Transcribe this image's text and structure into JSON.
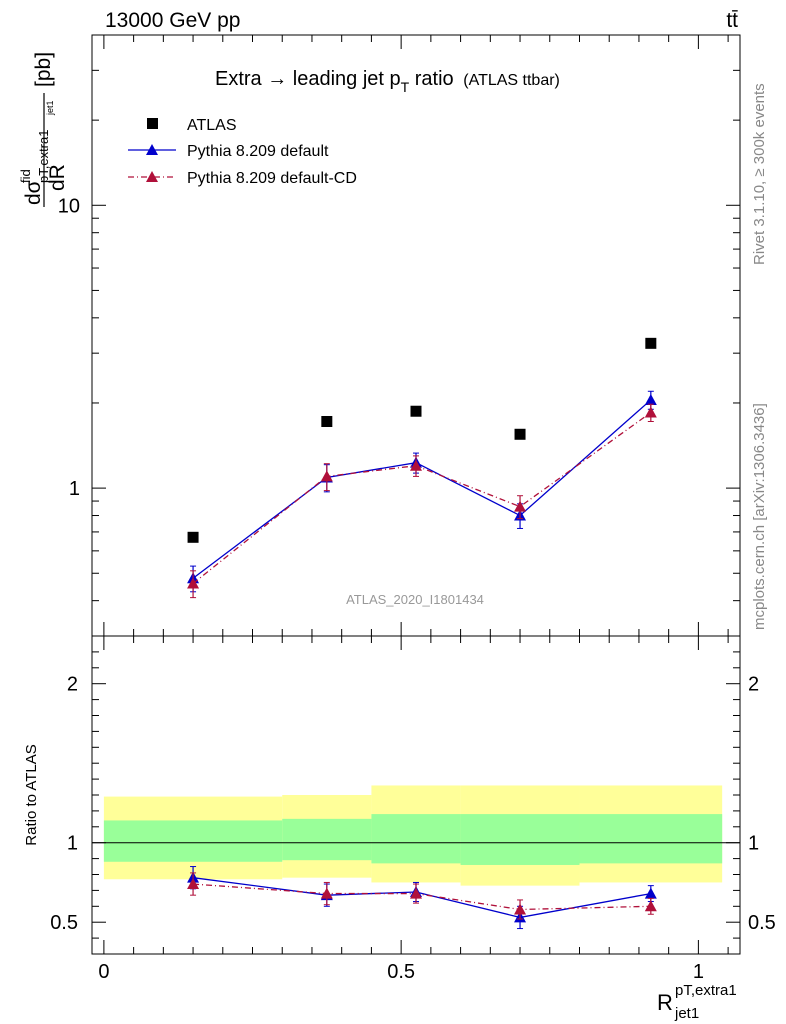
{
  "header": {
    "beam": "13000 GeV pp",
    "process": "tt̄"
  },
  "side_labels": {
    "rivet": "Rivet 3.1.10, ≥ 300k events",
    "mcplots": "mcplots.cern.ch [arXiv:1306.3436]"
  },
  "watermark": "ATLAS_2020_I1801434",
  "chart_data": [
    {
      "type": "scatter",
      "panel": "main",
      "title": "Extra → leading jet p",
      "title_sub": "T",
      "title_tail": " ratio",
      "title_note": "(ATLAS ttbar)",
      "ylabel": "dσ/dR [pb]",
      "ylabel_parts": {
        "d": "d",
        "sigma": "σ",
        "sup": "fid",
        "sub": "pT,extra1",
        "subsub": "jet1",
        "dR": "dR",
        "unit": "[pb]"
      },
      "yscale": "log",
      "ylim": [
        0.3,
        40
      ],
      "xlim": [
        -0.02,
        1.07
      ],
      "yticks": [
        {
          "value": 1,
          "label": "1"
        },
        {
          "value": 10,
          "label": "10"
        }
      ],
      "legend_position": "top-left",
      "series": [
        {
          "name": "ATLAS",
          "color": "#000000",
          "marker": "square",
          "line": "none",
          "x": [
            0.15,
            0.375,
            0.525,
            0.7,
            0.92
          ],
          "y": [
            0.67,
            1.72,
            1.87,
            1.55,
            3.25
          ]
        },
        {
          "name": "Pythia 8.209 default",
          "color": "#0000cc",
          "marker": "triangle",
          "line": "solid",
          "x": [
            0.15,
            0.375,
            0.525,
            0.7,
            0.92
          ],
          "y": [
            0.48,
            1.09,
            1.23,
            0.8,
            2.05
          ],
          "yerr": [
            0.05,
            0.12,
            0.1,
            0.08,
            0.15
          ]
        },
        {
          "name": "Pythia 8.209 default-CD",
          "color": "#b0103a",
          "marker": "triangle",
          "line": "dashdot",
          "x": [
            0.15,
            0.375,
            0.525,
            0.7,
            0.92
          ],
          "y": [
            0.46,
            1.1,
            1.2,
            0.86,
            1.85
          ],
          "yerr": [
            0.05,
            0.12,
            0.1,
            0.08,
            0.13
          ]
        }
      ]
    },
    {
      "type": "line",
      "panel": "ratio",
      "ylabel": "Ratio to ATLAS",
      "ylim": [
        0.3,
        2.3
      ],
      "xlim": [
        -0.02,
        1.07
      ],
      "xlabel_base": "R",
      "xlabel_sup": "pT,extra1",
      "xlabel_sub": "jet1",
      "xticks": [
        {
          "value": 0,
          "label": "0"
        },
        {
          "value": 0.5,
          "label": "0.5"
        },
        {
          "value": 1,
          "label": "1"
        }
      ],
      "yticks": [
        {
          "value": 0.5,
          "label": "0.5"
        },
        {
          "value": 1,
          "label": "1"
        },
        {
          "value": 2,
          "label": "2"
        }
      ],
      "reference_line": 1,
      "bands": {
        "stat_color": "#99ff99",
        "total_color": "#ffff99",
        "bins": [
          {
            "x0": 0.0,
            "x1": 0.3,
            "inner": [
              0.88,
              1.14
            ],
            "outer": [
              0.77,
              1.29
            ]
          },
          {
            "x0": 0.3,
            "x1": 0.45,
            "inner": [
              0.89,
              1.15
            ],
            "outer": [
              0.78,
              1.3
            ]
          },
          {
            "x0": 0.45,
            "x1": 0.6,
            "inner": [
              0.87,
              1.18
            ],
            "outer": [
              0.75,
              1.36
            ]
          },
          {
            "x0": 0.6,
            "x1": 0.8,
            "inner": [
              0.86,
              1.18
            ],
            "outer": [
              0.73,
              1.36
            ]
          },
          {
            "x0": 0.8,
            "x1": 1.04,
            "inner": [
              0.87,
              1.18
            ],
            "outer": [
              0.75,
              1.36
            ]
          }
        ]
      },
      "series": [
        {
          "name": "Pythia 8.209 default",
          "color": "#0000cc",
          "marker": "triangle",
          "line": "solid",
          "x": [
            0.15,
            0.375,
            0.525,
            0.7,
            0.92
          ],
          "y": [
            0.78,
            0.67,
            0.69,
            0.53,
            0.68
          ],
          "yerr": [
            0.07,
            0.07,
            0.06,
            0.07,
            0.05
          ]
        },
        {
          "name": "Pythia 8.209 default-CD",
          "color": "#b0103a",
          "marker": "triangle",
          "line": "dashdot",
          "x": [
            0.15,
            0.375,
            0.525,
            0.7,
            0.92
          ],
          "y": [
            0.74,
            0.68,
            0.68,
            0.58,
            0.6
          ],
          "yerr": [
            0.07,
            0.07,
            0.06,
            0.06,
            0.05
          ]
        }
      ]
    }
  ]
}
